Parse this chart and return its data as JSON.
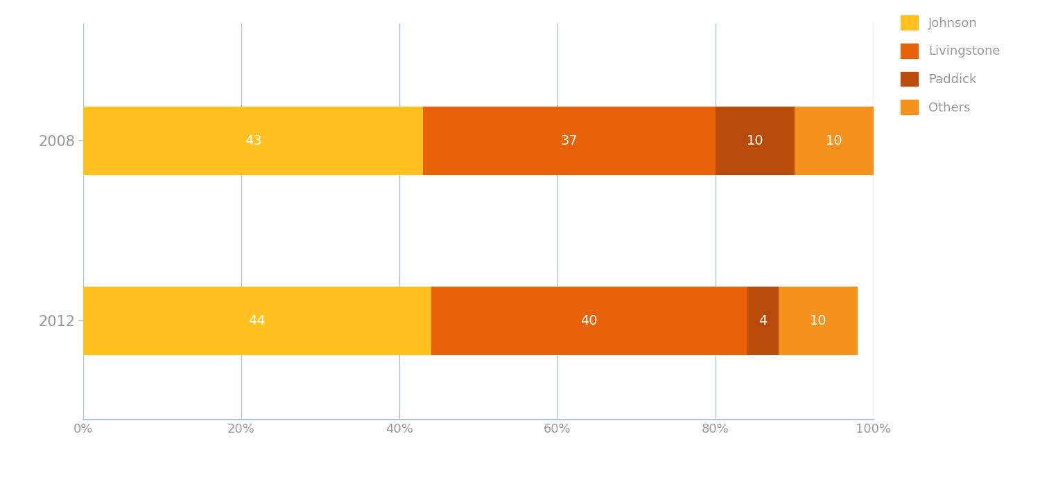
{
  "years": [
    "2008",
    "2012"
  ],
  "categories": [
    "Johnson",
    "Livingstone",
    "Paddick",
    "Others"
  ],
  "values": {
    "2008": [
      43,
      37,
      10,
      10
    ],
    "2012": [
      44,
      40,
      4,
      10
    ]
  },
  "colors": [
    "#FFC020",
    "#E8620A",
    "#B84A0A",
    "#F5921E"
  ],
  "legend_colors": [
    "#FFC020",
    "#E8620A",
    "#B84A0A",
    "#F5921E"
  ],
  "text_color": "#FFFFFF",
  "label_color": "#999999",
  "axis_color": "#B0C4CF",
  "grid_color": "#B0C4CF",
  "background_color": "#FFFFFF",
  "xticks": [
    0,
    20,
    40,
    60,
    80,
    100
  ],
  "xtick_labels": [
    "0%",
    "20%",
    "40%",
    "60%",
    "80%",
    "100%"
  ],
  "bar_height": 0.38,
  "label_fontsize": 15,
  "tick_fontsize": 13,
  "legend_fontsize": 13,
  "value_fontsize": 14
}
